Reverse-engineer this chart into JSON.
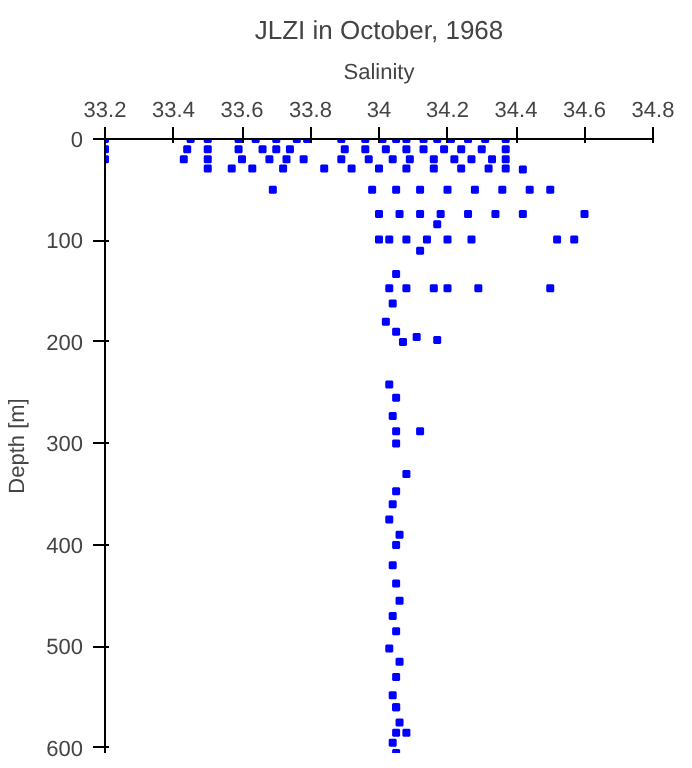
{
  "chart_data": {
    "type": "scatter",
    "title": "JLZI in October, 1968",
    "xlabel": "Salinity",
    "ylabel": "Depth [m]",
    "xlim": [
      33.2,
      34.8
    ],
    "xticks": [
      33.2,
      33.4,
      33.6,
      33.8,
      34,
      34.2,
      34.4,
      34.6,
      34.8
    ],
    "ylim": [
      605,
      0
    ],
    "yticks": [
      0,
      100,
      200,
      300,
      400,
      500,
      600
    ],
    "grid": false,
    "marker": "square",
    "series": [
      {
        "color": "#0000ff",
        "x": [
          33.2,
          33.45,
          33.5,
          33.59,
          33.64,
          33.7,
          33.76,
          33.79,
          33.89,
          33.96,
          34.01,
          34.05,
          34.08,
          34.13,
          34.17,
          34.21,
          34.26,
          34.31,
          34.37,
          33.2,
          33.44,
          33.5,
          33.59,
          33.66,
          33.7,
          33.74,
          33.9,
          33.96,
          34.02,
          34.08,
          34.13,
          34.19,
          34.24,
          34.3,
          34.37,
          33.2,
          33.43,
          33.5,
          33.6,
          33.68,
          33.73,
          33.78,
          33.89,
          33.97,
          34.04,
          34.09,
          34.16,
          34.22,
          34.27,
          34.33,
          34.37,
          33.5,
          33.57,
          33.63,
          33.72,
          33.84,
          33.92,
          34.0,
          34.08,
          34.16,
          34.24,
          34.32,
          34.37,
          34.42,
          33.69,
          33.98,
          34.05,
          34.12,
          34.2,
          34.28,
          34.36,
          34.44,
          34.5,
          34.0,
          34.06,
          34.12,
          34.18,
          34.26,
          34.34,
          34.42,
          34.6,
          34.17,
          34.0,
          34.03,
          34.08,
          34.14,
          34.2,
          34.27,
          34.52,
          34.57,
          34.12,
          34.05,
          34.03,
          34.08,
          34.16,
          34.2,
          34.29,
          34.5,
          34.04,
          34.02,
          34.05,
          34.07,
          34.11,
          34.17,
          34.03,
          34.05,
          34.04,
          34.05,
          34.12,
          34.05,
          34.08,
          34.05,
          34.04,
          34.03,
          34.06,
          34.05,
          34.04,
          34.05,
          34.06,
          34.04,
          34.05,
          34.03,
          34.06,
          34.05,
          34.04,
          34.05,
          34.06,
          34.05,
          34.04,
          34.05,
          34.08,
          34.05
        ],
        "values": [
          0,
          0,
          0,
          0,
          0,
          0,
          0,
          0,
          0,
          0,
          0,
          0,
          0,
          0,
          0,
          0,
          0,
          0,
          0,
          10,
          10,
          10,
          10,
          10,
          10,
          10,
          10,
          10,
          10,
          10,
          10,
          10,
          10,
          10,
          10,
          20,
          20,
          20,
          20,
          20,
          20,
          20,
          20,
          20,
          20,
          20,
          20,
          20,
          20,
          20,
          20,
          29,
          29,
          29,
          29,
          29,
          29,
          29,
          29,
          29,
          29,
          29,
          29,
          30,
          50,
          50,
          50,
          50,
          50,
          50,
          50,
          50,
          50,
          74,
          74,
          74,
          74,
          74,
          74,
          74,
          74,
          84,
          99,
          99,
          99,
          99,
          99,
          99,
          99,
          99,
          110,
          133,
          147,
          147,
          147,
          147,
          147,
          147,
          162,
          180,
          190,
          200,
          195,
          198,
          242,
          255,
          273,
          288,
          288,
          300,
          330,
          347,
          360,
          375,
          390,
          400,
          420,
          438,
          455,
          470,
          485,
          502,
          515,
          530,
          548,
          560,
          575,
          585,
          595,
          605,
          585,
          560
        ]
      }
    ]
  }
}
